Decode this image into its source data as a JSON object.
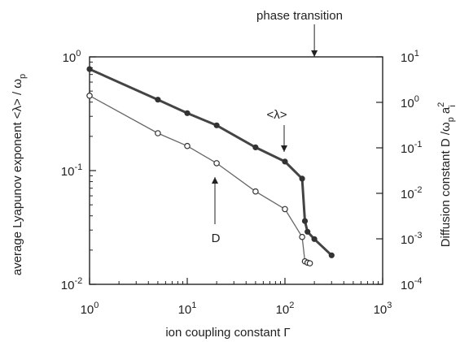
{
  "chart_data": {
    "type": "line",
    "xlabel": "ion coupling constant Γ",
    "ylabel_left": "average Lyapunov exponent   <λ> / ω",
    "ylabel_left_sub": "p",
    "ylabel_right": "Diffusion constant   D /ω",
    "ylabel_right_sub": "p",
    "ylabel_right_tail": "a",
    "ylabel_right_sup": "2",
    "ylabel_right_sub2": "i",
    "x_scale": "log",
    "y_left_scale": "log",
    "y_right_scale": "log",
    "xlim": [
      1,
      1000
    ],
    "ylim_left": [
      0.01,
      1
    ],
    "ylim_right": [
      0.0001,
      10
    ],
    "x_ticks": [
      {
        "value": 1,
        "base": "10",
        "exp": "0"
      },
      {
        "value": 10,
        "base": "10",
        "exp": "1"
      },
      {
        "value": 100,
        "base": "10",
        "exp": "2"
      },
      {
        "value": 1000,
        "base": "10",
        "exp": "3"
      }
    ],
    "y_left_ticks": [
      {
        "value": 1,
        "base": "10",
        "exp": "0"
      },
      {
        "value": 0.1,
        "base": "10",
        "exp": "-1"
      },
      {
        "value": 0.01,
        "base": "10",
        "exp": "-2"
      }
    ],
    "y_right_ticks": [
      {
        "value": 10,
        "base": "10",
        "exp": "1"
      },
      {
        "value": 1,
        "base": "10",
        "exp": "0"
      },
      {
        "value": 0.1,
        "base": "10",
        "exp": "-1"
      },
      {
        "value": 0.01,
        "base": "10",
        "exp": "-2"
      },
      {
        "value": 0.001,
        "base": "10",
        "exp": "-3"
      },
      {
        "value": 0.0001,
        "base": "10",
        "exp": "-4"
      }
    ],
    "series": [
      {
        "name": "<λ>",
        "axis": "left",
        "marker": "filled-circle",
        "x": [
          1,
          5,
          10,
          20,
          50,
          100,
          150,
          160,
          170,
          200,
          300
        ],
        "y": [
          0.78,
          0.42,
          0.32,
          0.25,
          0.16,
          0.12,
          0.085,
          0.036,
          0.029,
          0.025,
          0.018
        ]
      },
      {
        "name": "D",
        "axis": "right",
        "marker": "open-circle",
        "x": [
          1,
          5,
          10,
          20,
          50,
          100,
          150,
          160,
          170,
          180
        ],
        "y": [
          1.4,
          0.21,
          0.11,
          0.046,
          0.011,
          0.0045,
          0.0011,
          0.00032,
          0.0003,
          0.00029
        ]
      }
    ],
    "annotations": [
      {
        "text": "phase transition",
        "points_to_x": 200
      },
      {
        "text": "<λ>",
        "points_to_series": "<λ>"
      },
      {
        "text": "D",
        "points_to_series": "D"
      }
    ],
    "grid": false
  }
}
